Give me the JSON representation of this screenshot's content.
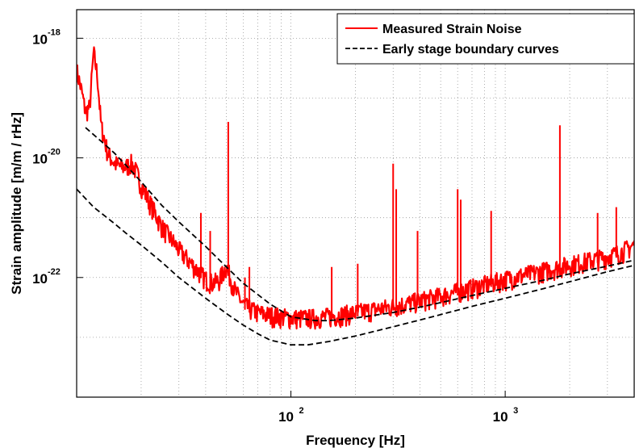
{
  "chart_data": {
    "type": "line",
    "title": "",
    "xlabel": "Frequency [Hz]",
    "ylabel": "Strain amplitude [m/m / rHz]",
    "x_scale": "log",
    "y_scale": "log",
    "xlim": [
      10,
      4000
    ],
    "ylim": [
      1e-24,
      3e-18
    ],
    "grid": true,
    "legend_position": "top-right",
    "x_ticks": [
      {
        "value": 100,
        "base": "10",
        "exp": "2"
      },
      {
        "value": 1000,
        "base": "10",
        "exp": "3"
      }
    ],
    "y_ticks": [
      {
        "value": 1e-18,
        "base": "10",
        "exp": "-18"
      },
      {
        "value": 1e-20,
        "base": "10",
        "exp": "-20"
      },
      {
        "value": 1e-22,
        "base": "10",
        "exp": "-22"
      }
    ],
    "series": [
      {
        "name": "Measured Strain Noise",
        "color": "#ff0000",
        "style": "solid",
        "x": [
          10,
          10.5,
          11,
          11.5,
          12,
          12.5,
          13,
          14,
          15,
          16,
          17,
          18,
          19,
          20,
          22,
          25,
          28,
          30,
          33,
          36,
          40,
          43,
          46,
          50,
          55,
          60,
          65,
          70,
          80,
          90,
          100,
          120,
          150,
          200,
          300,
          400,
          500,
          600,
          800,
          1000,
          1500,
          2000,
          3000,
          3500,
          4000
        ],
        "y": [
          2.5e-19,
          1.2e-19,
          5e-20,
          6e-20,
          5e-19,
          2e-19,
          3e-20,
          1e-20,
          7e-21,
          6e-21,
          6e-21,
          7e-21,
          5e-21,
          3e-21,
          1.5e-21,
          6e-22,
          3.5e-22,
          2.5e-22,
          1.7e-22,
          1.2e-22,
          8e-23,
          7e-23,
          7.5e-23,
          1.3e-22,
          5e-23,
          3e-23,
          2.5e-23,
          2.2e-23,
          2e-23,
          1.9e-23,
          1.8e-23,
          1.8e-23,
          1.9e-23,
          2.2e-23,
          2.8e-23,
          3.5e-23,
          4.2e-23,
          5e-23,
          6.5e-23,
          8e-23,
          1.1e-22,
          1.4e-22,
          1.9e-22,
          2.3e-22,
          3e-22
        ],
        "peaks": [
          {
            "x": 51,
            "y": 4e-20
          },
          {
            "x": 38,
            "y": 1.2e-21
          },
          {
            "x": 42,
            "y": 6e-22
          },
          {
            "x": 61,
            "y": 1e-22
          },
          {
            "x": 64,
            "y": 1.5e-22
          },
          {
            "x": 155,
            "y": 1.5e-22
          },
          {
            "x": 205,
            "y": 1.7e-22
          },
          {
            "x": 300,
            "y": 8e-21
          },
          {
            "x": 310,
            "y": 3e-21
          },
          {
            "x": 390,
            "y": 6e-22
          },
          {
            "x": 600,
            "y": 3e-21
          },
          {
            "x": 620,
            "y": 2e-21
          },
          {
            "x": 860,
            "y": 1.3e-21
          },
          {
            "x": 1800,
            "y": 3.5e-20
          },
          {
            "x": 2700,
            "y": 1.2e-21
          },
          {
            "x": 3300,
            "y": 1.5e-21
          }
        ]
      },
      {
        "name": "Early stage boundary curves",
        "color": "#000000",
        "style": "dashed",
        "x": [
          11,
          13,
          15,
          17,
          20,
          25,
          30,
          40,
          50,
          60,
          70,
          80,
          100,
          130,
          150,
          200,
          300,
          400,
          500,
          700,
          1000,
          1500,
          2000,
          3000,
          4000
        ],
        "y": [
          3.2e-20,
          1.9e-20,
          1.2e-20,
          7.5e-21,
          4e-21,
          1.6e-21,
          8.5e-22,
          3.3e-22,
          1.5e-22,
          8e-23,
          5.2e-23,
          3.6e-23,
          2.2e-23,
          1.9e-23,
          1.9e-23,
          2.1e-23,
          2.6e-23,
          3.2e-23,
          3.8e-23,
          5e-23,
          6.6e-23,
          9e-23,
          1.15e-22,
          1.55e-22,
          1.95e-22
        ]
      },
      {
        "name": "",
        "color": "#000000",
        "style": "dashed",
        "x": [
          10,
          12,
          15,
          17,
          20,
          25,
          30,
          40,
          50,
          60,
          70,
          80,
          100,
          120,
          150,
          200,
          300,
          400,
          500,
          700,
          1000,
          1500,
          2000,
          3000,
          4000
        ],
        "y": [
          3e-21,
          1.5e-21,
          8e-22,
          5.5e-22,
          3.5e-22,
          1.8e-22,
          1e-22,
          4.5e-23,
          2.5e-23,
          1.6e-23,
          1.15e-23,
          9e-24,
          7.5e-24,
          7.5e-24,
          8.5e-24,
          1.05e-23,
          1.5e-23,
          1.95e-23,
          2.4e-23,
          3.3e-23,
          4.5e-23,
          6.5e-23,
          8.5e-23,
          1.25e-22,
          1.6e-22
        ]
      }
    ],
    "legend": [
      {
        "label": "Measured Strain Noise",
        "color": "#ff0000",
        "style": "solid"
      },
      {
        "label": "Early stage boundary curves",
        "color": "#000000",
        "style": "dashed"
      }
    ]
  }
}
